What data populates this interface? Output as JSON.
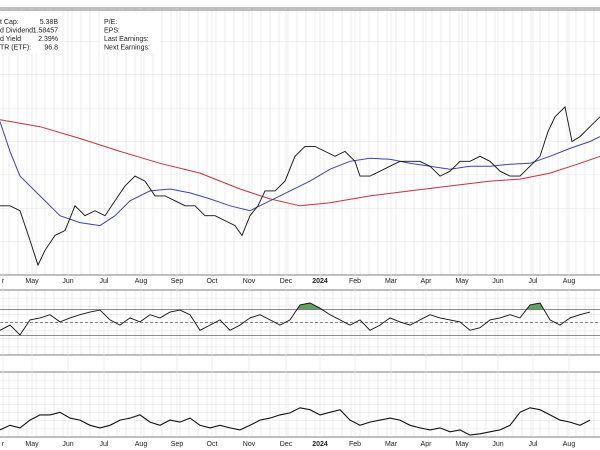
{
  "chart_data": {
    "type": "stock",
    "info": [
      {
        "label": "t Cap:",
        "value": "5.38B"
      },
      {
        "label": "d Dividend:",
        "value": "1.58457"
      },
      {
        "label": "d Yield",
        "value": "2.39%"
      },
      {
        "label": "TR (ETF):",
        "value": "96.8"
      }
    ],
    "info2": [
      "P/E:",
      "EPS:",
      "Last Earnings:",
      "Next Earnings:"
    ],
    "xlim": [
      0,
      600
    ],
    "xticks": [
      {
        "value": 3,
        "label": "r"
      },
      {
        "value": 32,
        "label": "May"
      },
      {
        "value": 68,
        "label": "Jun"
      },
      {
        "value": 104,
        "label": "Jul"
      },
      {
        "value": 141,
        "label": "Aug"
      },
      {
        "value": 177,
        "label": "Sep"
      },
      {
        "value": 212,
        "label": "Oct"
      },
      {
        "value": 249,
        "label": "Nov"
      },
      {
        "value": 286,
        "label": "Dec"
      },
      {
        "value": 320,
        "label": "2024"
      },
      {
        "value": 355,
        "label": "Feb"
      },
      {
        "value": 391,
        "label": "Mar"
      },
      {
        "value": 426,
        "label": "Apr"
      },
      {
        "value": 462,
        "label": "May"
      },
      {
        "value": 498,
        "label": "Jun"
      },
      {
        "value": 533,
        "label": "Jul"
      },
      {
        "value": 569,
        "label": "Aug"
      }
    ],
    "ylim": [
      0,
      270
    ],
    "price": {
      "color": "#111111",
      "x": [
        0,
        10,
        20,
        30,
        38,
        45,
        55,
        65,
        75,
        85,
        95,
        105,
        115,
        125,
        135,
        145,
        155,
        165,
        175,
        185,
        195,
        205,
        215,
        225,
        235,
        242,
        250,
        258,
        265,
        275,
        285,
        295,
        305,
        315,
        325,
        335,
        345,
        355,
        360,
        370,
        380,
        390,
        400,
        410,
        420,
        430,
        440,
        450,
        460,
        470,
        480,
        490,
        500,
        510,
        520,
        530,
        540,
        548,
        555,
        565,
        572,
        580,
        590,
        600
      ],
      "values": [
        70,
        70,
        65,
        35,
        10,
        25,
        40,
        45,
        70,
        60,
        65,
        60,
        75,
        90,
        100,
        95,
        80,
        80,
        75,
        70,
        70,
        60,
        60,
        55,
        50,
        40,
        60,
        70,
        85,
        85,
        95,
        120,
        130,
        130,
        125,
        120,
        125,
        115,
        100,
        100,
        105,
        110,
        115,
        115,
        115,
        110,
        100,
        105,
        115,
        115,
        120,
        115,
        105,
        100,
        100,
        110,
        120,
        145,
        160,
        170,
        135,
        140,
        150,
        160
      ]
    },
    "ma_short": {
      "color": "#3b45b5",
      "x": [
        0,
        10,
        20,
        40,
        60,
        80,
        100,
        115,
        130,
        150,
        170,
        190,
        210,
        230,
        250,
        270,
        290,
        310,
        330,
        350,
        370,
        390,
        410,
        430,
        450,
        470,
        490,
        510,
        530,
        550,
        570,
        590,
        600
      ],
      "values": [
        155,
        125,
        100,
        80,
        60,
        53,
        50,
        60,
        75,
        85,
        87,
        83,
        77,
        70,
        65,
        75,
        85,
        95,
        107,
        115,
        118,
        117,
        113,
        110,
        107,
        110,
        110,
        112,
        113,
        120,
        128,
        135,
        140
      ]
    },
    "ma_long": {
      "color": "#c8323c",
      "x": [
        0,
        40,
        80,
        120,
        160,
        200,
        240,
        270,
        300,
        330,
        370,
        410,
        450,
        490,
        520,
        550,
        580,
        600
      ],
      "values": [
        157,
        150,
        138,
        125,
        113,
        103,
        87,
        77,
        70,
        73,
        80,
        85,
        90,
        95,
        97,
        103,
        113,
        120
      ]
    },
    "osc": {
      "color": "#111111",
      "fill": "#3a8a3a",
      "ylim": [
        0,
        100
      ],
      "levels": [
        70,
        50,
        30
      ],
      "x": [
        0,
        10,
        20,
        30,
        40,
        50,
        60,
        70,
        80,
        90,
        100,
        110,
        120,
        130,
        140,
        150,
        160,
        170,
        180,
        190,
        200,
        210,
        220,
        230,
        240,
        250,
        260,
        270,
        280,
        290,
        300,
        310,
        320,
        330,
        340,
        350,
        360,
        370,
        380,
        390,
        400,
        410,
        420,
        430,
        440,
        450,
        460,
        470,
        480,
        490,
        500,
        510,
        520,
        530,
        540,
        550,
        560,
        570,
        580,
        590
      ],
      "values": [
        38,
        46,
        31,
        54,
        57,
        62,
        51,
        57,
        62,
        66,
        69,
        54,
        46,
        57,
        51,
        62,
        57,
        66,
        69,
        62,
        38,
        46,
        54,
        38,
        46,
        57,
        62,
        54,
        46,
        54,
        77,
        80,
        72,
        62,
        54,
        46,
        54,
        38,
        46,
        57,
        51,
        46,
        54,
        62,
        57,
        54,
        51,
        38,
        42,
        54,
        57,
        62,
        57,
        77,
        80,
        54,
        46,
        57,
        62,
        66
      ]
    },
    "lower": {
      "color": "#111111",
      "ylim": [
        0,
        100
      ],
      "x": [
        0,
        10,
        20,
        30,
        40,
        50,
        60,
        70,
        80,
        90,
        100,
        110,
        120,
        130,
        140,
        150,
        160,
        170,
        180,
        190,
        200,
        210,
        220,
        230,
        240,
        250,
        260,
        270,
        280,
        290,
        300,
        310,
        320,
        330,
        340,
        350,
        360,
        370,
        380,
        390,
        400,
        410,
        420,
        430,
        440,
        450,
        460,
        470,
        480,
        490,
        500,
        510,
        520,
        530,
        540,
        550,
        560,
        570,
        580,
        590
      ],
      "values": [
        11,
        18,
        14,
        26,
        34,
        34,
        38,
        29,
        26,
        18,
        14,
        18,
        26,
        29,
        34,
        23,
        18,
        26,
        23,
        29,
        18,
        14,
        18,
        14,
        11,
        18,
        26,
        29,
        34,
        37,
        45,
        42,
        34,
        38,
        42,
        26,
        18,
        23,
        26,
        29,
        26,
        18,
        14,
        11,
        14,
        8,
        11,
        3,
        5,
        8,
        11,
        18,
        38,
        45,
        42,
        34,
        26,
        23,
        18,
        26
      ]
    }
  }
}
